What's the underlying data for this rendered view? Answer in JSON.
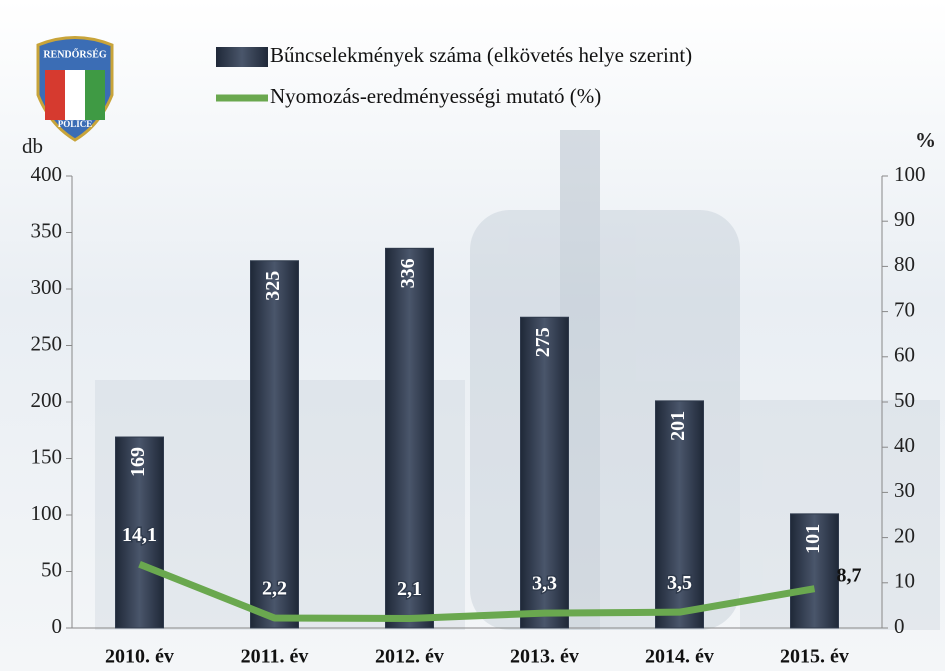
{
  "logo": {
    "top": "RENDŐRSÉG",
    "bottom": "POLICE"
  },
  "chart_data": {
    "type": "bar",
    "y_label": "db",
    "y2_label": "%",
    "categories": [
      "2010. év",
      "2011. év",
      "2012. év",
      "2013. év",
      "2014. év",
      "2015. év"
    ],
    "series": [
      {
        "name": "Bűncselekmények száma (elkövetés helye szerint)",
        "type": "bar",
        "color": "#2f3a4c",
        "values": [
          169,
          325,
          336,
          275,
          201,
          101
        ]
      },
      {
        "name": "Nyomozás-eredményességi mutató (%)",
        "type": "line",
        "axis": "y2",
        "color": "#6aa84f",
        "values": [
          14.1,
          2.2,
          2.1,
          3.3,
          3.5,
          8.7
        ],
        "value_labels": [
          "14,1",
          "2,2",
          "2,1",
          "3,3",
          "3,5",
          "8,7"
        ]
      }
    ],
    "ylim": [
      0,
      400
    ],
    "yticks": [
      0,
      50,
      100,
      150,
      200,
      250,
      300,
      350,
      400
    ],
    "y2lim": [
      0,
      100
    ],
    "y2ticks": [
      0,
      10,
      20,
      30,
      40,
      50,
      60,
      70,
      80,
      90,
      100
    ]
  }
}
